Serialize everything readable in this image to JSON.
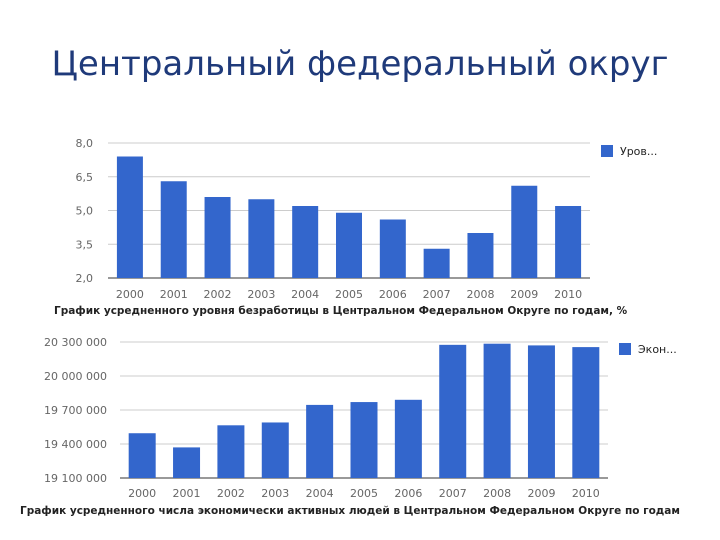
{
  "slide": {
    "title": "Центральный федеральный округ"
  },
  "chart_data": [
    {
      "type": "bar",
      "categories": [
        "2000",
        "2001",
        "2002",
        "2003",
        "2004",
        "2005",
        "2006",
        "2007",
        "2008",
        "2009",
        "2010"
      ],
      "series": [
        {
          "name": "Уров...",
          "values": [
            7.4,
            6.3,
            5.6,
            5.5,
            5.2,
            4.9,
            4.6,
            3.3,
            4.0,
            6.1,
            5.2
          ]
        }
      ],
      "y_tick_labels": [
        "8,0",
        "6,5",
        "5,0",
        "3,5",
        "2,0"
      ],
      "x_tick_labels": [
        "2000",
        "2001",
        "2002",
        "2003",
        "2004",
        "2005",
        "2006",
        "2007",
        "2008",
        "2009",
        "2010"
      ],
      "ylim": [
        2.0,
        8.0
      ],
      "yticks": [
        2.0,
        3.5,
        5.0,
        6.5,
        8.0
      ],
      "caption": "График усредненного уровня безработицы в Центральном Федеральном Округе по годам, %",
      "legend_position": "right",
      "color": "#3366cc"
    },
    {
      "type": "bar",
      "categories": [
        "2000",
        "2001",
        "2002",
        "2003",
        "2004",
        "2005",
        "2006",
        "2007",
        "2008",
        "2009",
        "2010"
      ],
      "series": [
        {
          "name": "Экон...",
          "values": [
            19495000,
            19370000,
            19565000,
            19590000,
            19745000,
            19770000,
            19790000,
            20275000,
            20285000,
            20270000,
            20255000
          ]
        }
      ],
      "y_tick_labels": [
        "20 300 000",
        "20 000 000",
        "19 700 000",
        "19 400 000",
        "19 100 000"
      ],
      "x_tick_labels": [
        "2000",
        "2001",
        "2002",
        "2003",
        "2004",
        "2005",
        "2006",
        "2007",
        "2008",
        "2009",
        "2010"
      ],
      "ylim": [
        19100000,
        20300000
      ],
      "yticks": [
        19100000,
        19400000,
        19700000,
        20000000,
        20300000
      ],
      "caption": "График усредненного числа экономически активных людей в Центральном Федеральном Округе по годам",
      "legend_position": "right",
      "color": "#3366cc"
    }
  ]
}
